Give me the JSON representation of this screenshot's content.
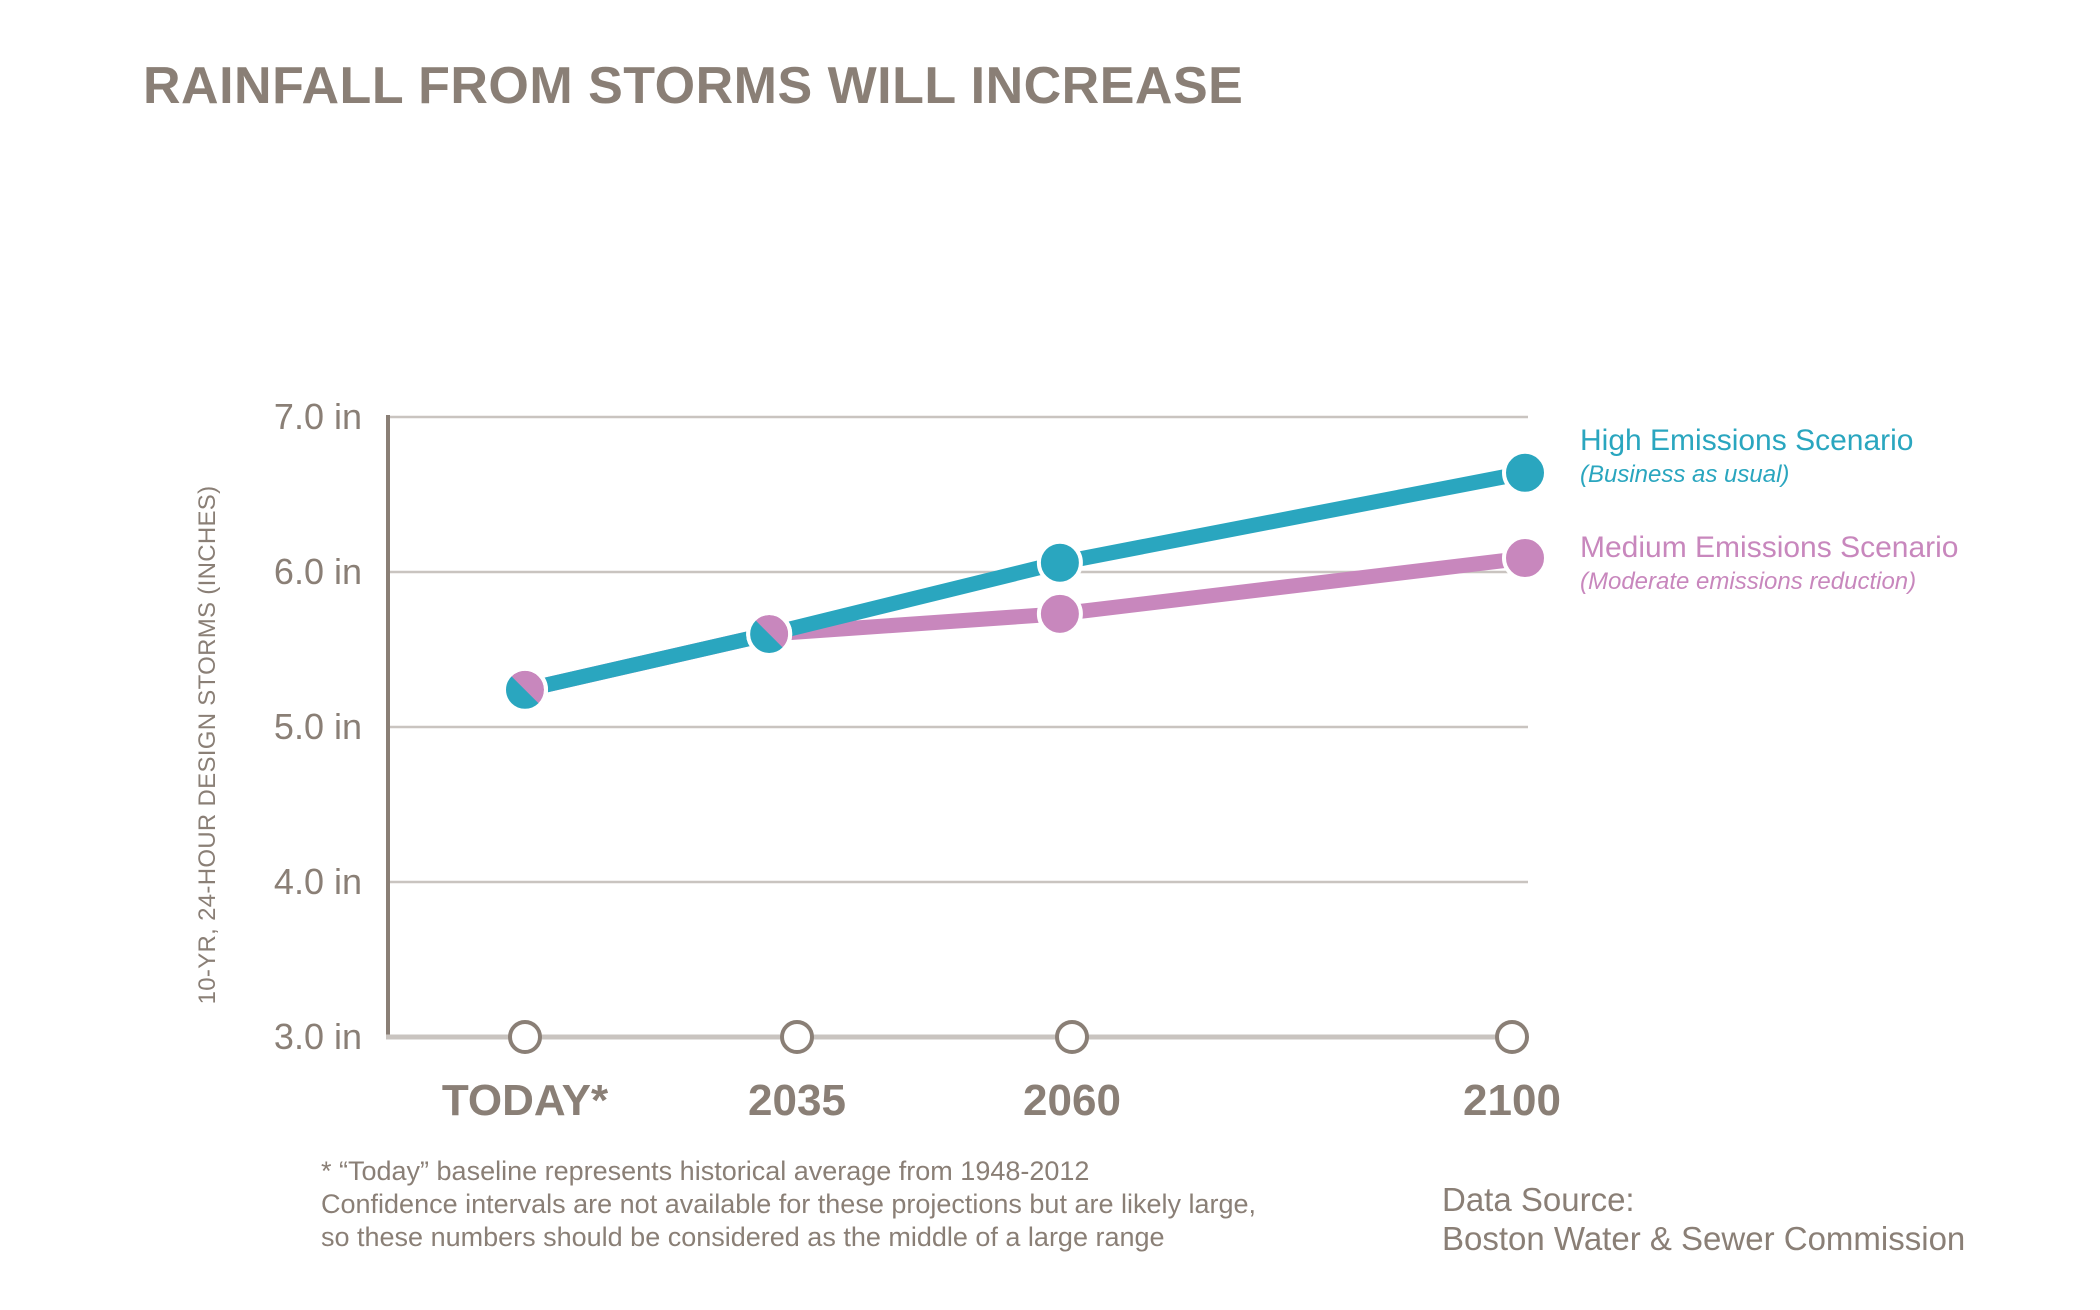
{
  "colors": {
    "text": "#8a7f76",
    "grid": "#c9c4c0",
    "axis": "#8a7f76",
    "high": "#2aa6bf",
    "medium": "#c887bd"
  },
  "chart_data": {
    "type": "line",
    "title": "RAINFALL FROM STORMS WILL INCREASE",
    "ylabel": "10-YR, 24-HOUR DESIGN STORMS (INCHES)",
    "xlabel": "",
    "categories": [
      "TODAY*",
      "2035",
      "2060",
      "2100"
    ],
    "x": [
      2014,
      2035,
      2060,
      2100
    ],
    "ylim": [
      3.0,
      7.0
    ],
    "yticks": [
      {
        "value": 7.0,
        "label": "7.0 in"
      },
      {
        "value": 6.0,
        "label": "6.0 in"
      },
      {
        "value": 5.0,
        "label": "5.0 in"
      },
      {
        "value": 4.0,
        "label": "4.0 in"
      },
      {
        "value": 3.0,
        "label": "3.0 in"
      }
    ],
    "grid": true,
    "legend_position": "right",
    "series": [
      {
        "name": "High Emissions Scenario",
        "subtitle": "(Business as usual)",
        "color": "#2aa6bf",
        "values": [
          5.24,
          5.6,
          6.06,
          6.64
        ]
      },
      {
        "name": "Medium Emissions Scenario",
        "subtitle": "(Moderate emissions reduction)",
        "color": "#c887bd",
        "values": [
          5.24,
          5.6,
          5.73,
          6.09
        ]
      }
    ]
  },
  "footnotes": [
    "* “Today” baseline represents historical average from 1948-2012",
    "Confidence intervals are not available for these projections but are likely large,",
    "so these numbers should be considered as the middle of a large range"
  ],
  "source": {
    "label": "Data Source:",
    "name": "Boston Water & Sewer Commission"
  }
}
